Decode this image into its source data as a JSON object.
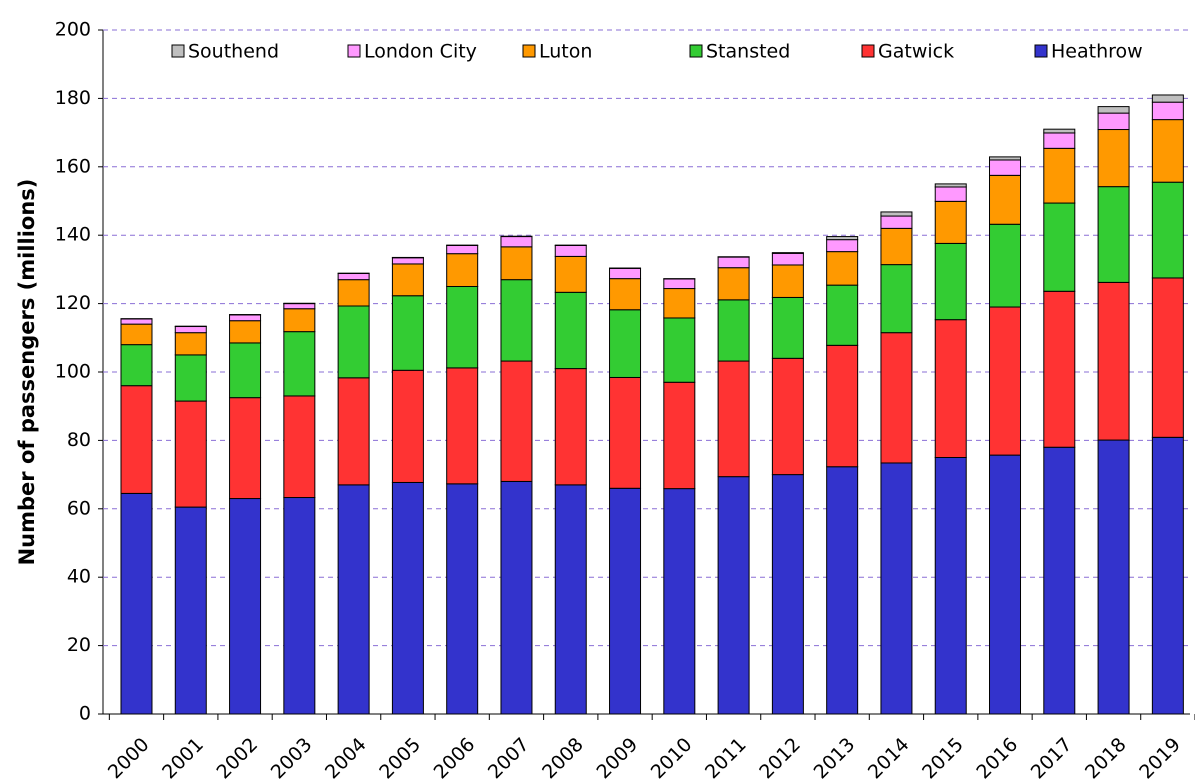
{
  "chart_data": {
    "type": "stacked_bar",
    "y_label": "Number of passengers (millions)",
    "categories": [
      "2000",
      "2001",
      "2002",
      "2003",
      "2004",
      "2005",
      "2006",
      "2007",
      "2008",
      "2009",
      "2010",
      "2011",
      "2012",
      "2013",
      "2014",
      "2015",
      "2016",
      "2017",
      "2018",
      "2019"
    ],
    "series": [
      {
        "name": "Heathrow",
        "color": "#3333cc",
        "values": [
          64.5,
          60.5,
          63,
          63.3,
          67,
          67.7,
          67.3,
          68,
          67,
          66,
          65.9,
          69.4,
          70,
          72.3,
          73.4,
          75,
          75.7,
          78,
          80.1,
          80.9
        ]
      },
      {
        "name": "Gatwick",
        "color": "#ff3333",
        "values": [
          31.5,
          31,
          29.5,
          29.7,
          31.3,
          32.8,
          33.9,
          35.2,
          34,
          32.4,
          31.1,
          33.8,
          34,
          35.5,
          38.1,
          40.3,
          43.3,
          45.6,
          46.1,
          46.6
        ]
      },
      {
        "name": "Stansted",
        "color": "#33cc33",
        "values": [
          12,
          13.5,
          16,
          18.8,
          21,
          21.8,
          23.8,
          23.8,
          22.3,
          19.8,
          18.8,
          17.9,
          17.8,
          17.6,
          19.9,
          22.3,
          24.2,
          25.8,
          28,
          28
        ]
      },
      {
        "name": "Luton",
        "color": "#ff9900",
        "values": [
          6,
          6.5,
          6.5,
          6.7,
          7.7,
          9.3,
          9.6,
          9.6,
          10.5,
          9.1,
          8.6,
          9.4,
          9.5,
          9.8,
          10.6,
          12.3,
          14.3,
          16,
          16.7,
          18.3
        ]
      },
      {
        "name": "London City",
        "color": "#ff99ff",
        "values": [
          1.5,
          1.8,
          1.7,
          1.5,
          1.8,
          1.8,
          2.4,
          3,
          3.2,
          3,
          2.8,
          3.1,
          3.4,
          3.5,
          3.6,
          4.2,
          4.5,
          4.5,
          4.8,
          5.1
        ]
      },
      {
        "name": "Southend",
        "color": "#bfbfbf",
        "values": [
          0.1,
          0.1,
          0.1,
          0.1,
          0.1,
          0.1,
          0.1,
          0.1,
          0.1,
          0.1,
          0.1,
          0.1,
          0.2,
          0.9,
          1.2,
          0.9,
          0.9,
          1.1,
          1.9,
          2.1
        ]
      }
    ],
    "ylim": [
      0,
      200
    ],
    "yticks": [
      0,
      20,
      40,
      60,
      80,
      100,
      120,
      140,
      160,
      180,
      200
    ],
    "grid": true,
    "legend": "top"
  }
}
